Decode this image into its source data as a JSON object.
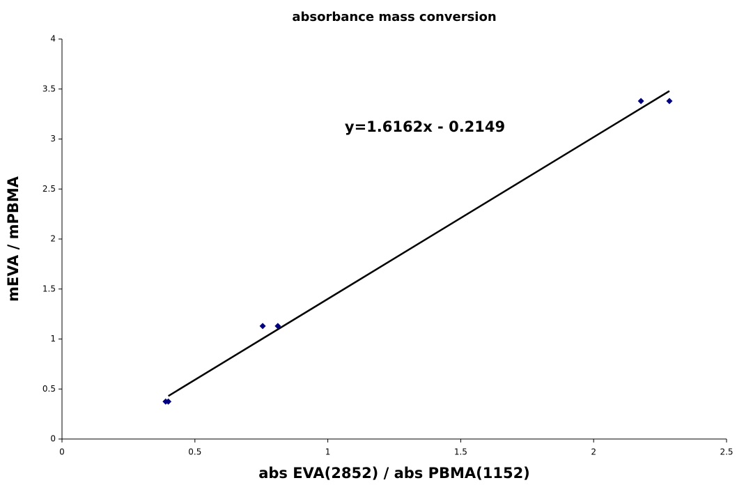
{
  "chart_data": {
    "type": "scatter",
    "title": "absorbance mass conversion",
    "x_label": "abs EVA(2852) / abs PBMA(1152)",
    "y_label": "mEVA / mPBMA",
    "series": [
      {
        "color": "#000080",
        "x": [
          0.39,
          0.4,
          0.755,
          0.812,
          2.178,
          2.285
        ],
        "values": [
          0.375,
          0.375,
          1.13,
          1.13,
          3.38,
          3.38
        ]
      }
    ],
    "trendline": {
      "color": "#000000",
      "x": [
        0.4,
        2.285
      ],
      "values": [
        0.43,
        3.48
      ]
    },
    "annotation": "y=1.6162x - 0.2149",
    "xlim": [
      0,
      2.5
    ],
    "xticks": [
      0,
      0.5,
      1,
      1.5,
      2,
      2.5
    ],
    "ylim": [
      0,
      4
    ],
    "yticks": [
      0,
      0.5,
      1,
      1.5,
      2,
      2.5,
      3,
      3.5,
      4
    ],
    "grid": false
  }
}
